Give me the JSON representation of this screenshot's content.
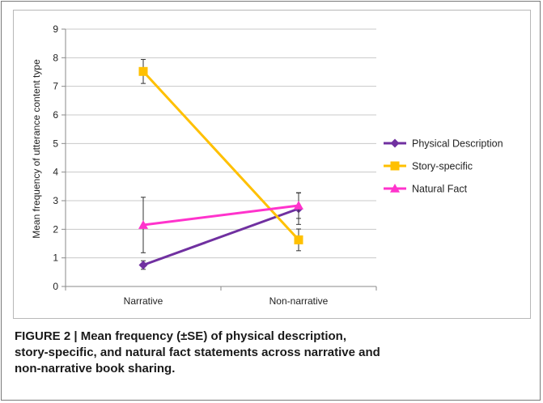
{
  "chart_data": {
    "type": "line",
    "title": "",
    "xlabel": "",
    "ylabel": "Mean frequency of utterance content type",
    "categories": [
      "Narrative",
      "Non-narrative"
    ],
    "ylim": [
      0,
      9
    ],
    "yticks": [
      0,
      1,
      2,
      3,
      4,
      5,
      6,
      7,
      8,
      9
    ],
    "grid": true,
    "legend_position": "right",
    "series": [
      {
        "name": "Physical Description",
        "values": [
          0.75,
          2.72
        ],
        "error": [
          0.15,
          0.55
        ],
        "color": "#7030a0",
        "marker": "diamond"
      },
      {
        "name": "Story-specific",
        "values": [
          7.52,
          1.63
        ],
        "error": [
          0.42,
          0.38
        ],
        "color": "#ffc000",
        "marker": "square"
      },
      {
        "name": "Natural Fact",
        "values": [
          2.15,
          2.83
        ],
        "error": [
          0.97,
          0.45
        ],
        "color": "#ff33cc",
        "marker": "triangle"
      }
    ]
  },
  "caption": {
    "line1": "FIGURE 2 | Mean frequency (±SE) of physical description,",
    "line2": "story-specific, and natural fact statements across narrative and",
    "line3": "non-narrative book sharing."
  }
}
